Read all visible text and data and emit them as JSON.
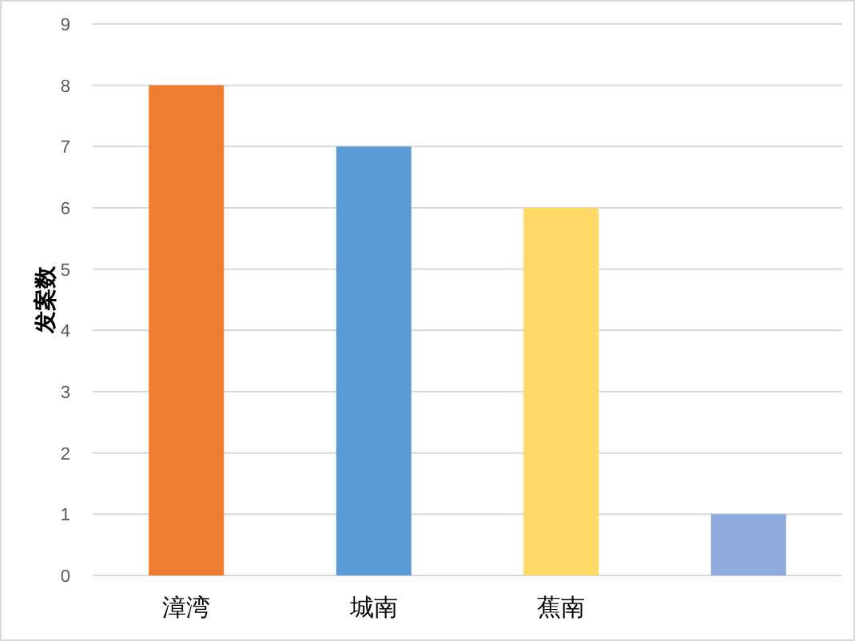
{
  "chart_data": {
    "type": "bar",
    "ylabel": "发案数",
    "categories": [
      "漳湾",
      "城南",
      "蕉南",
      null
    ],
    "values": [
      8,
      7,
      6,
      1
    ],
    "colors": [
      "#ed7d31",
      "#5b9bd5",
      "#ffd966",
      "#8faadc"
    ],
    "ylim": [
      0,
      9
    ],
    "yticks": [
      0,
      1,
      2,
      3,
      4,
      5,
      6,
      7,
      8,
      9
    ],
    "grid": "y"
  }
}
